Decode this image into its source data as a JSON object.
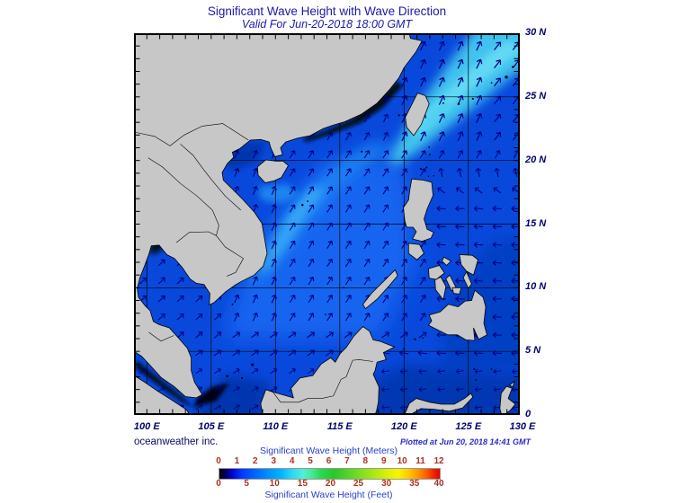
{
  "title": "Significant Wave Height with Wave Direction",
  "subtitle": "Valid For Jun-20-2018 18:00 GMT",
  "credits": {
    "left": "oceanweather inc.",
    "right": "Plotted at Jun 20, 2018 14:41 GMT"
  },
  "axes": {
    "longitude_labels": [
      "100 E",
      "105 E",
      "110 E",
      "115 E",
      "120 E",
      "125 E",
      "130 E"
    ],
    "longitude_values": [
      100,
      105,
      110,
      115,
      120,
      125,
      130
    ],
    "latitude_labels": [
      "30 N",
      "25 N",
      "20 N",
      "15 N",
      "10 N",
      "5 N",
      "0"
    ],
    "latitude_values": [
      30,
      25,
      20,
      15,
      10,
      5,
      0
    ],
    "grid_interval_deg": 5,
    "tick_interval_deg": 1
  },
  "colorbar": {
    "top_label": "Significant Wave Height (Meters)",
    "bottom_label": "Significant Wave Height (Feet)",
    "meters_ticks": [
      0,
      1,
      2,
      3,
      4,
      5,
      6,
      7,
      8,
      9,
      10,
      11,
      12
    ],
    "feet_ticks": [
      0,
      5,
      10,
      15,
      20,
      25,
      30,
      35,
      40
    ],
    "gradient_stops": [
      [
        0,
        "#000000"
      ],
      [
        3,
        "#00006b"
      ],
      [
        6,
        "#0008c8"
      ],
      [
        10,
        "#0038ff"
      ],
      [
        16,
        "#0064ff"
      ],
      [
        22,
        "#0090ff"
      ],
      [
        28,
        "#00b4ff"
      ],
      [
        33,
        "#2cd8f4"
      ],
      [
        38,
        "#50f0d8"
      ],
      [
        42,
        "#46e896"
      ],
      [
        46,
        "#2cd850"
      ],
      [
        52,
        "#28c828"
      ],
      [
        58,
        "#50d428"
      ],
      [
        64,
        "#7ce01e"
      ],
      [
        70,
        "#aae814"
      ],
      [
        76,
        "#d8f00a"
      ],
      [
        81,
        "#f8f400"
      ],
      [
        86,
        "#ffc800"
      ],
      [
        90,
        "#ff9600"
      ],
      [
        94,
        "#ff5a00"
      ],
      [
        97,
        "#f02800"
      ],
      [
        100,
        "#e00000"
      ]
    ]
  },
  "map_data": {
    "type": "geographic-field-map",
    "region": "South China Sea / Western Pacific",
    "extent": {
      "lon_min": "100 E",
      "lon_max": "130 E",
      "lat_min": "0",
      "lat_max": "30 N"
    },
    "field": "significant wave height (shaded) with wave direction (arrows)",
    "wave_height_range_m": [
      0,
      12
    ],
    "notable_features": [
      "2-3 m seas (cyan band) from the Luzon Strait northeast past Taiwan toward the Ryukyu Islands",
      "Southwest-monsoon seas of 1.5-2.5 m fanning northeast across the central South China Sea",
      "Westward-directed waves east of the Philippines and in the Celebes Sea",
      "Near-zero (black) wave heights along sheltered coasts (south China coast, Malacca Strait, head of Gulf of Thailand)"
    ]
  },
  "colors": {
    "title": "#1a1aa8",
    "axis_labels": "#00006e",
    "land": "#c7c7c7",
    "coastline": "#000000",
    "sea_base": "#0849dc",
    "grid": "#000000",
    "arrows": "#000080",
    "scale_numbers": "#b03020",
    "scale_titles": "#2742cc"
  }
}
